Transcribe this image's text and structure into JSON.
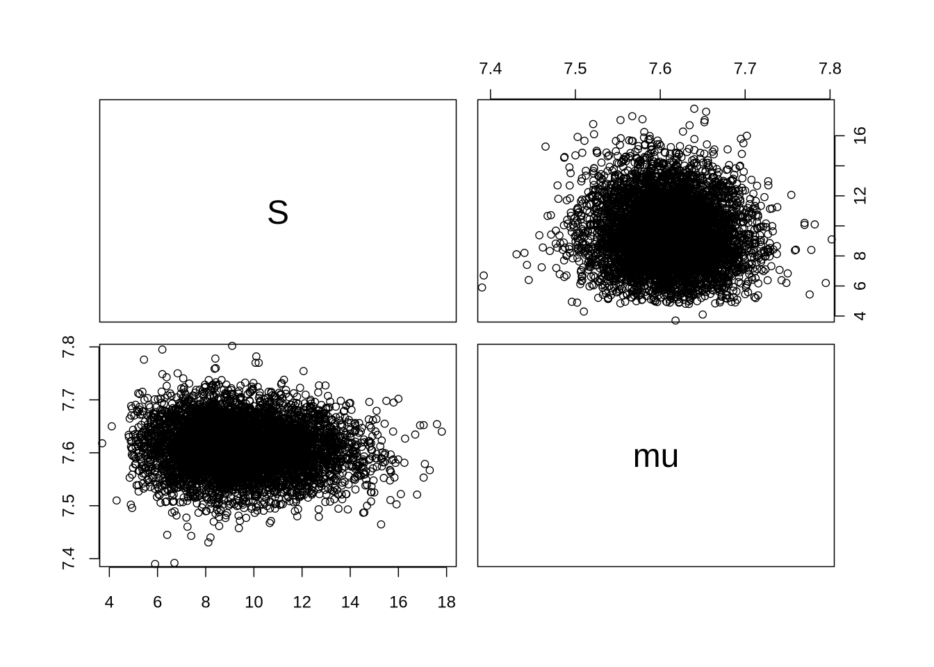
{
  "chart_data": {
    "type": "scatter",
    "title": "",
    "variables": [
      "S",
      "mu"
    ],
    "panels": [
      {
        "position": "top-left",
        "kind": "diagonal-label",
        "label": "S"
      },
      {
        "position": "top-right",
        "kind": "scatter",
        "x_variable": "mu",
        "y_variable": "S",
        "x_ticks": [
          "7.4",
          "7.5",
          "7.6",
          "7.7",
          "7.8"
        ],
        "x_axis_side": "top",
        "y_ticks": [
          "4",
          "6",
          "8",
          "10",
          "12",
          "14",
          "16"
        ],
        "y_ticks_labeled": [
          "4",
          "6",
          "8",
          "12",
          "16"
        ],
        "y_axis_side": "right",
        "xlim": [
          7.385,
          7.805
        ],
        "ylim": [
          3.6,
          18.4
        ]
      },
      {
        "position": "bottom-left",
        "kind": "scatter",
        "x_variable": "S",
        "y_variable": "mu",
        "x_ticks": [
          "4",
          "6",
          "8",
          "10",
          "12",
          "14",
          "16",
          "18"
        ],
        "x_axis_side": "bottom",
        "y_ticks": [
          "7.4",
          "7.5",
          "7.6",
          "7.7",
          "7.8"
        ],
        "y_axis_side": "left",
        "xlim": [
          3.6,
          18.4
        ],
        "ylim": [
          7.385,
          7.805
        ]
      },
      {
        "position": "bottom-right",
        "kind": "diagonal-label",
        "label": "mu"
      }
    ],
    "distribution": {
      "mu_center": 7.61,
      "mu_sd": 0.045,
      "S_center": 9.2,
      "S_sd": 1.9,
      "n_points": 6000
    },
    "outliers": [
      {
        "S": 3.7,
        "mu": 7.618
      },
      {
        "S": 4.1,
        "mu": 7.65
      },
      {
        "S": 4.3,
        "mu": 7.51
      },
      {
        "S": 5.9,
        "mu": 7.39
      },
      {
        "S": 6.7,
        "mu": 7.392
      },
      {
        "S": 6.4,
        "mu": 7.445
      },
      {
        "S": 7.4,
        "mu": 7.443
      },
      {
        "S": 8.2,
        "mu": 7.44
      },
      {
        "S": 9.1,
        "mu": 7.802
      },
      {
        "S": 6.2,
        "mu": 7.795
      },
      {
        "S": 10.1,
        "mu": 7.782
      },
      {
        "S": 16.1,
        "mu": 7.522
      },
      {
        "S": 17.3,
        "mu": 7.567
      },
      {
        "S": 17.1,
        "mu": 7.579
      },
      {
        "S": 17.8,
        "mu": 7.64
      },
      {
        "S": 17.6,
        "mu": 7.654
      },
      {
        "S": 16.9,
        "mu": 7.652
      },
      {
        "S": 16.0,
        "mu": 7.702
      },
      {
        "S": 15.8,
        "mu": 7.695
      },
      {
        "S": 15.5,
        "mu": 7.698
      },
      {
        "S": 13.9,
        "mu": 7.493
      },
      {
        "S": 11.8,
        "mu": 7.48
      },
      {
        "S": 15.0,
        "mu": 7.525
      },
      {
        "S": 10.2,
        "mu": 7.77
      },
      {
        "S": 8.4,
        "mu": 7.778
      }
    ]
  }
}
